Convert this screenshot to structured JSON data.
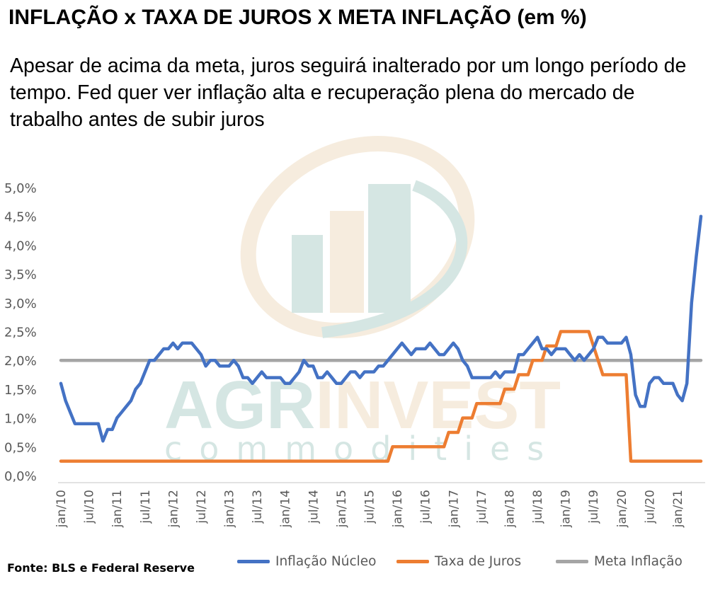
{
  "title": "INFLAÇÃO x TAXA DE JUROS X META INFLAÇÃO (em %)",
  "subtitle": "Apesar de acima da meta, juros seguirá inalterado por um longo período de tempo. Fed quer ver inflação alta e recuperação plena do mercado de trabalho antes de subir juros",
  "source": "Fonte: BLS e Federal Reserve",
  "watermark": {
    "brand": "AGRINVEST",
    "brand_part1": "AGR",
    "brand_part2": "INVEST",
    "tagline": "commodities"
  },
  "colors": {
    "inflation": "#4472C4",
    "rates": "#ED7D31",
    "target": "#A5A5A5",
    "axis_text": "#595959"
  },
  "chart_data": {
    "type": "line",
    "title": "INFLAÇÃO x TAXA DE JUROS X META INFLAÇÃO (em %)",
    "x_start": "2010-01",
    "x_end": "2021-06",
    "x_tick_labels": [
      "jan/10",
      "jul/10",
      "jan/11",
      "jul/11",
      "jan/12",
      "jul/12",
      "jan/13",
      "jul/13",
      "jan/14",
      "jul/14",
      "jan/15",
      "jul/15",
      "jan/16",
      "jul/16",
      "jan/17",
      "jul/17",
      "jan/18",
      "jul/18",
      "jan/19",
      "jul/19",
      "jan/20",
      "jul/20",
      "jan/21"
    ],
    "y_tick_labels": [
      "0,0%",
      "0,5%",
      "1,0%",
      "1,5%",
      "2,0%",
      "2,5%",
      "3,0%",
      "3,5%",
      "4,0%",
      "4,5%",
      "5,0%"
    ],
    "ylim": [
      0,
      5
    ],
    "legend_position": "bottom",
    "series": [
      {
        "name": "Inflação Núcleo",
        "color": "#4472C4",
        "points": [
          [
            "2010-01",
            1.6
          ],
          [
            "2010-02",
            1.3
          ],
          [
            "2010-03",
            1.1
          ],
          [
            "2010-04",
            0.9
          ],
          [
            "2010-05",
            0.9
          ],
          [
            "2010-06",
            0.9
          ],
          [
            "2010-07",
            0.9
          ],
          [
            "2010-08",
            0.9
          ],
          [
            "2010-09",
            0.9
          ],
          [
            "2010-10",
            0.6
          ],
          [
            "2010-11",
            0.8
          ],
          [
            "2010-12",
            0.8
          ],
          [
            "2011-01",
            1.0
          ],
          [
            "2011-02",
            1.1
          ],
          [
            "2011-03",
            1.2
          ],
          [
            "2011-04",
            1.3
          ],
          [
            "2011-05",
            1.5
          ],
          [
            "2011-06",
            1.6
          ],
          [
            "2011-07",
            1.8
          ],
          [
            "2011-08",
            2.0
          ],
          [
            "2011-09",
            2.0
          ],
          [
            "2011-10",
            2.1
          ],
          [
            "2011-11",
            2.2
          ],
          [
            "2011-12",
            2.2
          ],
          [
            "2012-01",
            2.3
          ],
          [
            "2012-02",
            2.2
          ],
          [
            "2012-03",
            2.3
          ],
          [
            "2012-04",
            2.3
          ],
          [
            "2012-05",
            2.3
          ],
          [
            "2012-06",
            2.2
          ],
          [
            "2012-07",
            2.1
          ],
          [
            "2012-08",
            1.9
          ],
          [
            "2012-09",
            2.0
          ],
          [
            "2012-10",
            2.0
          ],
          [
            "2012-11",
            1.9
          ],
          [
            "2012-12",
            1.9
          ],
          [
            "2013-01",
            1.9
          ],
          [
            "2013-02",
            2.0
          ],
          [
            "2013-03",
            1.9
          ],
          [
            "2013-04",
            1.7
          ],
          [
            "2013-05",
            1.7
          ],
          [
            "2013-06",
            1.6
          ],
          [
            "2013-07",
            1.7
          ],
          [
            "2013-08",
            1.8
          ],
          [
            "2013-09",
            1.7
          ],
          [
            "2013-10",
            1.7
          ],
          [
            "2013-11",
            1.7
          ],
          [
            "2013-12",
            1.7
          ],
          [
            "2014-01",
            1.6
          ],
          [
            "2014-02",
            1.6
          ],
          [
            "2014-03",
            1.7
          ],
          [
            "2014-04",
            1.8
          ],
          [
            "2014-05",
            2.0
          ],
          [
            "2014-06",
            1.9
          ],
          [
            "2014-07",
            1.9
          ],
          [
            "2014-08",
            1.7
          ],
          [
            "2014-09",
            1.7
          ],
          [
            "2014-10",
            1.8
          ],
          [
            "2014-11",
            1.7
          ],
          [
            "2014-12",
            1.6
          ],
          [
            "2015-01",
            1.6
          ],
          [
            "2015-02",
            1.7
          ],
          [
            "2015-03",
            1.8
          ],
          [
            "2015-04",
            1.8
          ],
          [
            "2015-05",
            1.7
          ],
          [
            "2015-06",
            1.8
          ],
          [
            "2015-07",
            1.8
          ],
          [
            "2015-08",
            1.8
          ],
          [
            "2015-09",
            1.9
          ],
          [
            "2015-10",
            1.9
          ],
          [
            "2015-11",
            2.0
          ],
          [
            "2015-12",
            2.1
          ],
          [
            "2016-01",
            2.2
          ],
          [
            "2016-02",
            2.3
          ],
          [
            "2016-03",
            2.2
          ],
          [
            "2016-04",
            2.1
          ],
          [
            "2016-05",
            2.2
          ],
          [
            "2016-06",
            2.2
          ],
          [
            "2016-07",
            2.2
          ],
          [
            "2016-08",
            2.3
          ],
          [
            "2016-09",
            2.2
          ],
          [
            "2016-10",
            2.1
          ],
          [
            "2016-11",
            2.1
          ],
          [
            "2016-12",
            2.2
          ],
          [
            "2017-01",
            2.3
          ],
          [
            "2017-02",
            2.2
          ],
          [
            "2017-03",
            2.0
          ],
          [
            "2017-04",
            1.9
          ],
          [
            "2017-05",
            1.7
          ],
          [
            "2017-06",
            1.7
          ],
          [
            "2017-07",
            1.7
          ],
          [
            "2017-08",
            1.7
          ],
          [
            "2017-09",
            1.7
          ],
          [
            "2017-10",
            1.8
          ],
          [
            "2017-11",
            1.7
          ],
          [
            "2017-12",
            1.8
          ],
          [
            "2018-01",
            1.8
          ],
          [
            "2018-02",
            1.8
          ],
          [
            "2018-03",
            2.1
          ],
          [
            "2018-04",
            2.1
          ],
          [
            "2018-05",
            2.2
          ],
          [
            "2018-06",
            2.3
          ],
          [
            "2018-07",
            2.4
          ],
          [
            "2018-08",
            2.2
          ],
          [
            "2018-09",
            2.2
          ],
          [
            "2018-10",
            2.1
          ],
          [
            "2018-11",
            2.2
          ],
          [
            "2018-12",
            2.2
          ],
          [
            "2019-01",
            2.2
          ],
          [
            "2019-02",
            2.1
          ],
          [
            "2019-03",
            2.0
          ],
          [
            "2019-04",
            2.1
          ],
          [
            "2019-05",
            2.0
          ],
          [
            "2019-06",
            2.1
          ],
          [
            "2019-07",
            2.2
          ],
          [
            "2019-08",
            2.4
          ],
          [
            "2019-09",
            2.4
          ],
          [
            "2019-10",
            2.3
          ],
          [
            "2019-11",
            2.3
          ],
          [
            "2019-12",
            2.3
          ],
          [
            "2020-01",
            2.3
          ],
          [
            "2020-02",
            2.4
          ],
          [
            "2020-03",
            2.1
          ],
          [
            "2020-04",
            1.4
          ],
          [
            "2020-05",
            1.2
          ],
          [
            "2020-06",
            1.2
          ],
          [
            "2020-07",
            1.6
          ],
          [
            "2020-08",
            1.7
          ],
          [
            "2020-09",
            1.7
          ],
          [
            "2020-10",
            1.6
          ],
          [
            "2020-11",
            1.6
          ],
          [
            "2020-12",
            1.6
          ],
          [
            "2021-01",
            1.4
          ],
          [
            "2021-02",
            1.3
          ],
          [
            "2021-03",
            1.6
          ],
          [
            "2021-04",
            3.0
          ],
          [
            "2021-05",
            3.8
          ],
          [
            "2021-06",
            4.5
          ]
        ]
      },
      {
        "name": "Taxa de Juros",
        "color": "#ED7D31",
        "points": [
          [
            "2010-01",
            0.25
          ],
          [
            "2015-11",
            0.25
          ],
          [
            "2015-12",
            0.5
          ],
          [
            "2016-11",
            0.5
          ],
          [
            "2016-12",
            0.75
          ],
          [
            "2017-02",
            0.75
          ],
          [
            "2017-03",
            1.0
          ],
          [
            "2017-05",
            1.0
          ],
          [
            "2017-06",
            1.25
          ],
          [
            "2017-11",
            1.25
          ],
          [
            "2017-12",
            1.5
          ],
          [
            "2018-02",
            1.5
          ],
          [
            "2018-03",
            1.75
          ],
          [
            "2018-05",
            1.75
          ],
          [
            "2018-06",
            2.0
          ],
          [
            "2018-08",
            2.0
          ],
          [
            "2018-09",
            2.25
          ],
          [
            "2018-11",
            2.25
          ],
          [
            "2018-12",
            2.5
          ],
          [
            "2019-06",
            2.5
          ],
          [
            "2019-07",
            2.25
          ],
          [
            "2019-08",
            2.0
          ],
          [
            "2019-09",
            1.75
          ],
          [
            "2020-02",
            1.75
          ],
          [
            "2020-03",
            0.25
          ],
          [
            "2021-06",
            0.25
          ]
        ]
      },
      {
        "name": "Meta Inflação",
        "color": "#A5A5A5",
        "points": [
          [
            "2010-01",
            2.0
          ],
          [
            "2021-06",
            2.0
          ]
        ]
      }
    ]
  }
}
